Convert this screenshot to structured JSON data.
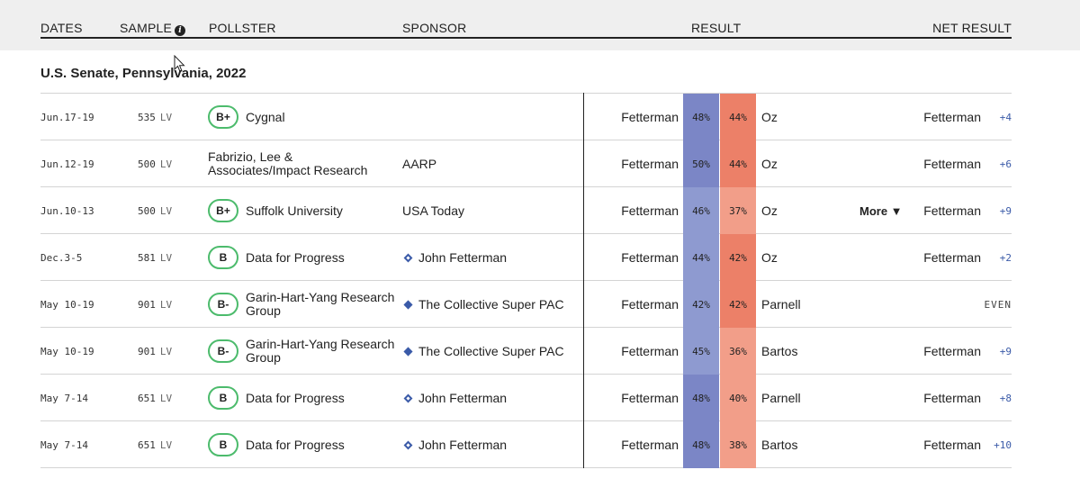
{
  "columns": {
    "dates": "DATES",
    "sample": "SAMPLE",
    "sample_info_icon": "info-icon",
    "pollster": "POLLSTER",
    "sponsor": "SPONSOR",
    "result": "RESULT",
    "net_result": "NET RESULT"
  },
  "race_title": "U.S. Senate, Pennsylvania, 2022",
  "colors": {
    "dem_strong": "#7b86c6",
    "dem_light": "#8e9ad0",
    "rep_strong": "#ec8068",
    "rep_light": "#f29e89",
    "grade_border": "#4cbb6c",
    "net_value": "#3a5aa8",
    "header_band": "#efefef"
  },
  "rows": [
    {
      "dates": "Jun.17-19",
      "sample": "535",
      "population": "LV",
      "grade": "B+",
      "pollster": "Cygnal",
      "sponsor": "",
      "sponsor_icon": "",
      "cand1": "Fetterman",
      "pct1": "48%",
      "pct2": "44%",
      "cand2": "Oz",
      "more": "",
      "net_cand": "Fetterman",
      "net_val": "+4",
      "dem_shade": "strong",
      "rep_shade": "strong"
    },
    {
      "dates": "Jun.12-19",
      "sample": "500",
      "population": "LV",
      "grade": "",
      "pollster": "Fabrizio, Lee & Associates/Impact Research",
      "sponsor": "AARP",
      "sponsor_icon": "",
      "cand1": "Fetterman",
      "pct1": "50%",
      "pct2": "44%",
      "cand2": "Oz",
      "more": "",
      "net_cand": "Fetterman",
      "net_val": "+6",
      "dem_shade": "strong",
      "rep_shade": "strong"
    },
    {
      "dates": "Jun.10-13",
      "sample": "500",
      "population": "LV",
      "grade": "B+",
      "pollster": "Suffolk University",
      "sponsor": "USA Today",
      "sponsor_icon": "",
      "cand1": "Fetterman",
      "pct1": "46%",
      "pct2": "37%",
      "cand2": "Oz",
      "more": "More ▼",
      "net_cand": "Fetterman",
      "net_val": "+9",
      "dem_shade": "light",
      "rep_shade": "light"
    },
    {
      "dates": "Dec.3-5",
      "sample": "581",
      "population": "LV",
      "grade": "B",
      "pollster": "Data for Progress",
      "sponsor": "John Fetterman",
      "sponsor_icon": "diamond-outline",
      "cand1": "Fetterman",
      "pct1": "44%",
      "pct2": "42%",
      "cand2": "Oz",
      "more": "",
      "net_cand": "Fetterman",
      "net_val": "+2",
      "dem_shade": "light",
      "rep_shade": "strong"
    },
    {
      "dates": "May 10-19",
      "sample": "901",
      "population": "LV",
      "grade": "B-",
      "pollster": "Garin-Hart-Yang Research Group",
      "sponsor": "The Collective Super PAC",
      "sponsor_icon": "diamond-filled",
      "cand1": "Fetterman",
      "pct1": "42%",
      "pct2": "42%",
      "cand2": "Parnell",
      "more": "",
      "net_cand": "",
      "net_val": "EVEN",
      "dem_shade": "light",
      "rep_shade": "strong"
    },
    {
      "dates": "May 10-19",
      "sample": "901",
      "population": "LV",
      "grade": "B-",
      "pollster": "Garin-Hart-Yang Research Group",
      "sponsor": "The Collective Super PAC",
      "sponsor_icon": "diamond-filled",
      "cand1": "Fetterman",
      "pct1": "45%",
      "pct2": "36%",
      "cand2": "Bartos",
      "more": "",
      "net_cand": "Fetterman",
      "net_val": "+9",
      "dem_shade": "light",
      "rep_shade": "light"
    },
    {
      "dates": "May 7-14",
      "sample": "651",
      "population": "LV",
      "grade": "B",
      "pollster": "Data for Progress",
      "sponsor": "John Fetterman",
      "sponsor_icon": "diamond-outline",
      "cand1": "Fetterman",
      "pct1": "48%",
      "pct2": "40%",
      "cand2": "Parnell",
      "more": "",
      "net_cand": "Fetterman",
      "net_val": "+8",
      "dem_shade": "strong",
      "rep_shade": "light"
    },
    {
      "dates": "May 7-14",
      "sample": "651",
      "population": "LV",
      "grade": "B",
      "pollster": "Data for Progress",
      "sponsor": "John Fetterman",
      "sponsor_icon": "diamond-outline",
      "cand1": "Fetterman",
      "pct1": "48%",
      "pct2": "38%",
      "cand2": "Bartos",
      "more": "",
      "net_cand": "Fetterman",
      "net_val": "+10",
      "dem_shade": "strong",
      "rep_shade": "light"
    }
  ]
}
